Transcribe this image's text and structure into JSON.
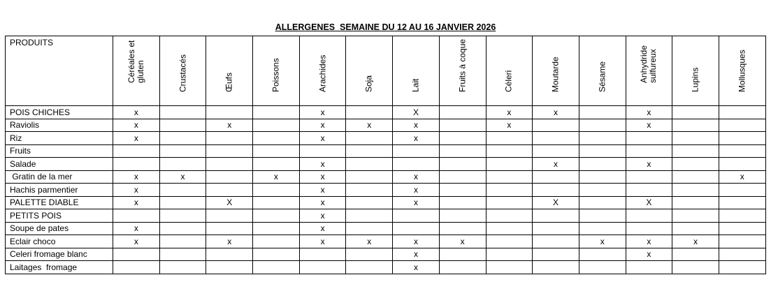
{
  "title": "ALLERGENES  SEMAINE DU 12 AU 16 JANVIER 2026",
  "product_header": "PRODUITS",
  "allergens": [
    "Céréales et gluten",
    "Crustacés",
    "Œufs",
    "Poissons",
    "Arachides",
    "Soja",
    "Lait",
    "Fruits à coque",
    "Céleri",
    "Moutarde",
    "Sésame",
    "Anhydride sulfureux",
    "Lupins",
    "Mollusques"
  ],
  "rows": [
    {
      "name": "POIS CHICHES",
      "marks": [
        "x",
        "",
        "",
        "",
        "x",
        "",
        "X",
        "",
        "x",
        "x",
        "",
        "x",
        "",
        ""
      ]
    },
    {
      "name": "Raviolis",
      "marks": [
        "x",
        "",
        "x",
        "",
        "x",
        "x",
        "x",
        "",
        "x",
        "",
        "",
        "x",
        "",
        ""
      ]
    },
    {
      "name": "Riz",
      "marks": [
        "x",
        "",
        "",
        "",
        "x",
        "",
        "x",
        "",
        "",
        "",
        "",
        "",
        "",
        ""
      ]
    },
    {
      "name": "Fruits",
      "marks": [
        "",
        "",
        "",
        "",
        "",
        "",
        "",
        "",
        "",
        "",
        "",
        "",
        "",
        ""
      ]
    },
    {
      "name": "Salade",
      "marks": [
        "",
        "",
        "",
        "",
        "x",
        "",
        "",
        "",
        "",
        "x",
        "",
        "x",
        "",
        ""
      ]
    },
    {
      "name": " Gratin de la mer",
      "marks": [
        "x",
        "x",
        "",
        "x",
        "x",
        "",
        "x",
        "",
        "",
        "",
        "",
        "",
        "",
        "x"
      ]
    },
    {
      "name": "Hachis parmentier",
      "marks": [
        "x",
        "",
        "",
        "",
        "x",
        "",
        "x",
        "",
        "",
        "",
        "",
        "",
        "",
        ""
      ]
    },
    {
      "name": "PALETTE DIABLE",
      "marks": [
        "x",
        "",
        "X",
        "",
        "x",
        "",
        "x",
        "",
        "",
        "X",
        "",
        "X",
        "",
        ""
      ]
    },
    {
      "name": "PETITS POIS",
      "marks": [
        "",
        "",
        "",
        "",
        "x",
        "",
        "",
        "",
        "",
        "",
        "",
        "",
        "",
        ""
      ]
    },
    {
      "name": "Soupe de pates",
      "marks": [
        "x",
        "",
        "",
        "",
        "x",
        "",
        "",
        "",
        "",
        "",
        "",
        "",
        "",
        ""
      ]
    },
    {
      "name": "Eclair choco",
      "marks": [
        "x",
        "",
        "x",
        "",
        "x",
        "x",
        "x",
        "x",
        "",
        "",
        "x",
        "x",
        "x",
        ""
      ]
    },
    {
      "name": "Celeri fromage blanc",
      "marks": [
        "",
        "",
        "",
        "",
        "",
        "",
        "x",
        "",
        "",
        "",
        "",
        "x",
        "",
        ""
      ]
    },
    {
      "name": "Laitages  fromage",
      "marks": [
        "",
        "",
        "",
        "",
        "",
        "",
        "x",
        "",
        "",
        "",
        "",
        "",
        "",
        ""
      ]
    }
  ]
}
